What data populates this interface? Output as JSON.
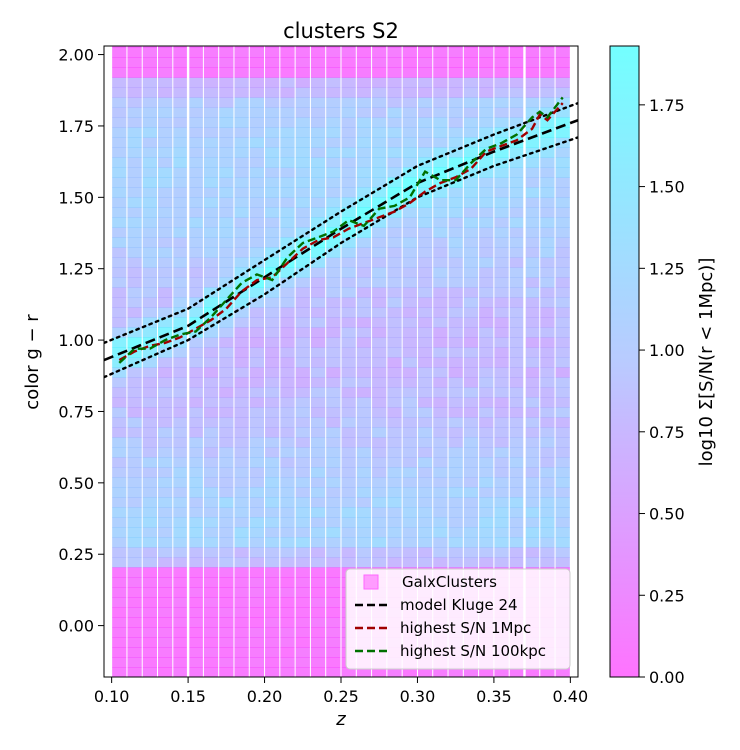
{
  "chart_data": {
    "type": "heatmap",
    "title": "clusters S2",
    "xlabel": "z",
    "ylabel": "color g − r",
    "xlim": [
      0.095,
      0.405
    ],
    "ylim": [
      -0.18,
      2.03
    ],
    "xticks": [
      0.1,
      0.15,
      0.2,
      0.25,
      0.3,
      0.35,
      0.4
    ],
    "xtick_labels": [
      "0.10",
      "0.15",
      "0.20",
      "0.25",
      "0.30",
      "0.35",
      "0.40"
    ],
    "yticks": [
      0.0,
      0.25,
      0.5,
      0.75,
      1.0,
      1.25,
      1.5,
      1.75,
      2.0
    ],
    "ytick_labels": [
      "0.00",
      "0.25",
      "0.50",
      "0.75",
      "1.00",
      "1.25",
      "1.50",
      "1.75",
      "2.00"
    ],
    "heatmap": {
      "z_range": [
        0.1,
        0.4
      ],
      "color_range": [
        -0.18,
        2.03
      ],
      "bin_width_z": 0.01,
      "gaps_z": [
        0.15,
        0.37
      ],
      "color_low": "#ff00ff",
      "color_mid": "#7fa0ff",
      "color_high": "#00ffff",
      "alpha": 0.55
    },
    "colorbar": {
      "label": "log10 Σ[S/N(r < 1Mpc)]",
      "range": [
        0.0,
        1.93
      ],
      "ticks": [
        0.0,
        0.25,
        0.5,
        0.75,
        1.0,
        1.25,
        1.5,
        1.75
      ],
      "tick_labels": [
        "0.00",
        "0.25",
        "0.50",
        "0.75",
        "1.00",
        "1.25",
        "1.50",
        "1.75"
      ]
    },
    "series": [
      {
        "name": "model Kluge 24",
        "style": "dashed",
        "color": "#000000",
        "x": [
          0.095,
          0.15,
          0.2,
          0.25,
          0.3,
          0.35,
          0.405
        ],
        "y": [
          0.93,
          1.05,
          1.22,
          1.39,
          1.55,
          1.66,
          1.77
        ]
      },
      {
        "name": "",
        "style": "dotted",
        "color": "#000000",
        "x": [
          0.095,
          0.15,
          0.2,
          0.25,
          0.3,
          0.35,
          0.405
        ],
        "y": [
          0.99,
          1.11,
          1.28,
          1.45,
          1.61,
          1.72,
          1.83
        ]
      },
      {
        "name": "",
        "style": "dotted",
        "color": "#000000",
        "x": [
          0.095,
          0.15,
          0.2,
          0.25,
          0.3,
          0.35,
          0.405
        ],
        "y": [
          0.87,
          1.0,
          1.16,
          1.34,
          1.5,
          1.61,
          1.71
        ]
      },
      {
        "name": "highest S/N 1Mpc",
        "style": "dashed",
        "color": "#a00000",
        "x": [
          0.105,
          0.115,
          0.125,
          0.135,
          0.145,
          0.155,
          0.165,
          0.175,
          0.185,
          0.195,
          0.205,
          0.215,
          0.225,
          0.235,
          0.245,
          0.255,
          0.265,
          0.275,
          0.285,
          0.295,
          0.305,
          0.315,
          0.325,
          0.335,
          0.345,
          0.355,
          0.365,
          0.375,
          0.38,
          0.385,
          0.395
        ],
        "y": [
          0.93,
          0.96,
          0.98,
          0.99,
          1.01,
          1.04,
          1.07,
          1.11,
          1.17,
          1.21,
          1.22,
          1.27,
          1.32,
          1.35,
          1.36,
          1.39,
          1.41,
          1.43,
          1.45,
          1.48,
          1.52,
          1.55,
          1.57,
          1.6,
          1.66,
          1.68,
          1.7,
          1.74,
          1.79,
          1.77,
          1.83
        ]
      },
      {
        "name": "highest S/N 100kpc",
        "style": "dashed",
        "color": "#007000",
        "x": [
          0.105,
          0.115,
          0.125,
          0.135,
          0.145,
          0.155,
          0.165,
          0.175,
          0.185,
          0.195,
          0.205,
          0.215,
          0.225,
          0.235,
          0.245,
          0.255,
          0.265,
          0.275,
          0.285,
          0.295,
          0.305,
          0.315,
          0.325,
          0.335,
          0.345,
          0.355,
          0.365,
          0.375,
          0.38,
          0.385,
          0.395
        ],
        "y": [
          0.92,
          0.97,
          0.97,
          1.0,
          1.02,
          1.03,
          1.08,
          1.14,
          1.2,
          1.23,
          1.21,
          1.29,
          1.34,
          1.36,
          1.38,
          1.42,
          1.4,
          1.46,
          1.47,
          1.5,
          1.59,
          1.56,
          1.56,
          1.62,
          1.67,
          1.69,
          1.72,
          1.78,
          1.8,
          1.78,
          1.85
        ]
      }
    ],
    "legend": {
      "placement": "lower-right",
      "entries": [
        {
          "label": "GalxClusters",
          "marker": "square",
          "color": "#ff9cff"
        },
        {
          "label": "model Kluge 24",
          "marker": "dashed-line",
          "color": "#000000"
        },
        {
          "label": "highest S/N 1Mpc",
          "marker": "dashed-line",
          "color": "#a00000"
        },
        {
          "label": "highest S/N 100kpc",
          "marker": "dashed-line",
          "color": "#007000"
        }
      ]
    }
  }
}
